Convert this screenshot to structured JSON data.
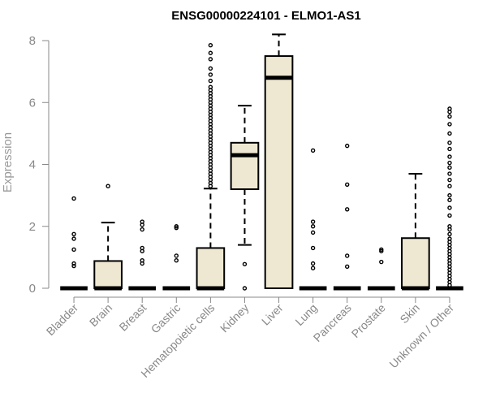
{
  "chart_data": {
    "type": "box",
    "title": "ENSG00000224101 - ELMO1-AS1",
    "ylabel": "Expression",
    "xlabel": "",
    "ylim": [
      0,
      8.2
    ],
    "yticks": [
      0,
      2,
      4,
      6,
      8
    ],
    "box_fill": "#EEE8D2",
    "categories": [
      "Bladder",
      "Brain",
      "Breast",
      "Gastric",
      "Hematopoietic cells",
      "Kidney",
      "Liver",
      "Lung",
      "Pancreas",
      "Prostate",
      "Skin",
      "Unknown / Other"
    ],
    "boxes": [
      {
        "category": "Bladder",
        "min": 0,
        "q1": 0,
        "median": 0,
        "q3": 0,
        "max": 0,
        "outliers": [
          0.72,
          0.8,
          1.25,
          1.6,
          1.75,
          2.9
        ]
      },
      {
        "category": "Brain",
        "min": 0,
        "q1": 0,
        "median": 0,
        "q3": 0.88,
        "max": 2.12,
        "outliers": [
          3.3
        ]
      },
      {
        "category": "Breast",
        "min": 0,
        "q1": 0,
        "median": 0,
        "q3": 0,
        "max": 0,
        "outliers": [
          0.8,
          0.9,
          1.2,
          1.3,
          1.9,
          2.05,
          2.15
        ]
      },
      {
        "category": "Gastric",
        "min": 0,
        "q1": 0,
        "median": 0,
        "q3": 0,
        "max": 0,
        "outliers": [
          0.9,
          1.05,
          1.95,
          2.0
        ]
      },
      {
        "category": "Hematopoietic cells",
        "min": 0,
        "q1": 0,
        "median": 0,
        "q3": 1.3,
        "max": 3.22,
        "outliers": [
          3.3,
          3.4,
          3.5,
          3.6,
          3.7,
          3.8,
          3.9,
          4.0,
          4.1,
          4.2,
          4.3,
          4.4,
          4.5,
          4.6,
          4.7,
          4.8,
          4.9,
          5.0,
          5.1,
          5.2,
          5.3,
          5.4,
          5.5,
          5.6,
          5.7,
          5.8,
          5.9,
          6.0,
          6.1,
          6.2,
          6.3,
          6.4,
          6.5,
          6.7,
          6.9,
          7.1,
          7.4,
          7.6,
          7.85
        ]
      },
      {
        "category": "Kidney",
        "min": 1.4,
        "q1": 3.2,
        "median": 4.3,
        "q3": 4.7,
        "max": 5.9,
        "outliers": [
          0,
          0.78
        ]
      },
      {
        "category": "Liver",
        "min": 0,
        "q1": 0,
        "median": 6.8,
        "q3": 7.5,
        "max": 8.2,
        "outliers": []
      },
      {
        "category": "Lung",
        "min": 0,
        "q1": 0,
        "median": 0,
        "q3": 0,
        "max": 0,
        "outliers": [
          0.65,
          0.8,
          1.3,
          1.8,
          2.0,
          2.15,
          4.45
        ]
      },
      {
        "category": "Pancreas",
        "min": 0,
        "q1": 0,
        "median": 0,
        "q3": 0,
        "max": 0,
        "outliers": [
          0.7,
          1.05,
          2.55,
          3.35,
          4.6
        ]
      },
      {
        "category": "Prostate",
        "min": 0,
        "q1": 0,
        "median": 0,
        "q3": 0,
        "max": 0,
        "outliers": [
          0.85,
          1.2,
          1.25
        ]
      },
      {
        "category": "Skin",
        "min": 0,
        "q1": 0,
        "median": 0,
        "q3": 1.62,
        "max": 3.7,
        "outliers": []
      },
      {
        "category": "Unknown / Other",
        "min": 0,
        "q1": 0,
        "median": 0,
        "q3": 0,
        "max": 0,
        "outliers": [
          0.1,
          0.2,
          0.3,
          0.4,
          0.5,
          0.6,
          0.7,
          0.8,
          0.9,
          1.0,
          1.1,
          1.2,
          1.3,
          1.4,
          1.5,
          1.6,
          1.75,
          1.9,
          2.0,
          2.35,
          2.6,
          2.85,
          3.0,
          3.3,
          3.5,
          3.7,
          3.9,
          4.05,
          4.25,
          4.5,
          4.7,
          5.0,
          5.3,
          5.55,
          5.7,
          5.8
        ]
      }
    ]
  }
}
